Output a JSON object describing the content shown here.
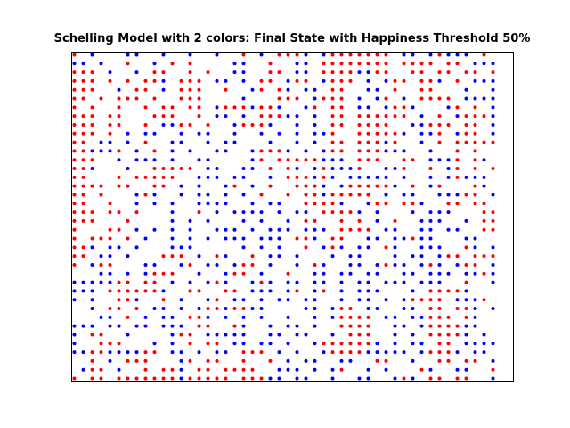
{
  "chart_data": {
    "type": "scatter",
    "title": "Schelling Model with 2 colors: Final State with Happiness Threshold 50%",
    "xlabel": "",
    "ylabel": "",
    "axes_visible": false,
    "grid": false,
    "xlim": [
      0,
      49
    ],
    "ylim": [
      0,
      37
    ],
    "colors": {
      "A": "#ff0000",
      "B": "#0000ff",
      "empty": "#ffffff"
    },
    "series": [
      {
        "key": "A"
      },
      {
        "key": "B"
      }
    ],
    "grid_rows": [
      "A.B...BB..B..B..B..A.B.AAAB.BAAAAAAA.BB.BABBB.A.",
      "BB.B..A..B.A.A....BB..A..BB.AAAAAAAA.AAAA.AA.BBB",
      "AAA.B..B.AA..A.A..BB..AA.BB.AAAABBAA..AA.AA.AA.A",
      "AAA.A.A.AAB.AAA.BB.B.AA.BAA.BAAA.B.BAA.AAB.A.BBB",
      "AAA..B.AA.B.AAA..A..BA.AB.BB.AA..BB.A..AA...B..B",
      "AA.A.AAA.A..AAA....B...AAA.BAAA.B.BA.B.AAAA.BBBB",
      "A.A..A..A.AA.AA.BAAABAAB..BA.AA.BB.BAAB...BA.A.B",
      "AAA.AA...AAA..A.BB.B.AAABB.B.AA.AAAAAA.B.A.BAAAB",
      "AAA.AA..A.BBAA.A..BAAAB..B.B.AA.AAAA..BBAAA.AA.B",
      "AAA.A.B.BB..B.BB..B..B.B.B.BBA..AAAAAB.BBA.BAA.B",
      "AA.BB.B.A..BB..B.BB...B..B.B.AA.AAABA..B.A.AAAAA",
      "AABBBA.B.A.B.B..BB..BAAAB.B.BAA.AAABBB..B..A.A..",
      "AAA..B.BBB.B..BB....BA.AAAAABBB.AAA..AA.BBBA.AB.",
      "AAB...B..AAAAA.BB..BB.A.AB.BABBBA..BBA..A.BA.A.A",
      "AA...A.AAAAA..BBB.BB..B.AAABAB.BBBBB.B..B.BABBB.",
      "AAAA.AA..AA.B.B..BA.B.A..AAAB.BAAAAAB.A.BA...AB.",
      "AA.A...BAB..B.BB.B.B.A..A.AABAAAAA.B.BB..BBBAA.B",
      "AA..A..B.B.B..BBBB..B.BB..AAAAB..BAA.AAB..AA.AA.",
      "AAA.AA.A...B..A.B.BBBB.B.BB.AAAAB.B...B.BBB...AA",
      "AAA...A....B.B.B...B.B..B.AA..A.A.B.A..BBB..B.AA",
      "A...AA.B.B.B.B..BBB.B.BBB.BBB.AAAA.BB..BB.BB..AA",
      "A.AAA.A.B..B.B.B.BBB.BBB.AAB.AA..BB.BBABB...BB..",
      "AAB.BB.B...BBB.....B.B.B..A.BAB.BB.AB..BBB..AB.B",
      "AA.BB.B...AAA.B.AB..A.BB.B...B.BB...B.BB.BAA.AAA",
      "A.BAA...BB..BA.BB.BAA.B..B.AB..BB.BABB.BAB.BAA.B",
      "...BB.B.BAAA..B..BAA.B..A..BB.BB.BB..BB.BBB.BBAB",
      "BBBBBAA.AA.B.B.BAB..BAB.BB.BB.B.BB.BBB.BBB..A..B",
      "BBB.AAAAAAB..AA..AA.BBB.BA.BA.B.BBB...B.AAAAB...",
      "B.B..AAB..A.B..BA.BB.B.BB.BB..B.BB.B.BAAAA.BBBA.",
      "..B.AA.A.BB.B.BAABAABB....BB.BAA.BB..BB.AA.AAB.B",
      "...BB.A.B.BB.AAB.B.B.B..B..B.BAAAA.BB.BBAAA.AB..",
      "BBB.BB.BB.BBB.AA..AB..B.BB.B..AAAA..BB.BAAAABB..",
      "B.AA..B....BAA.BBBBB..BB.BB..B.AAA..B.B.AAAAB.B.",
      "B..AAA...B.B.A.AA.BB.BB.B..BAAAAAAB.B.BB.AA.BBBB",
      "BBAABBBBAA.BB.B.BB.AAA.B.B..BAAAABBBBB.BAAAB.BB.",
      "..A.B.AAA...BA.AA..A..A.B.BB..BB..AA..B..AA.AA.B",
      ".BAA.B..A.AAB.AA.AAAA..BBB.B.BA..B.B...AB..BB..A",
      "A.AA.AAAAAAABAAAAA.AAABB.BB..B..BB..BAB.AA.AA..B"
    ]
  }
}
